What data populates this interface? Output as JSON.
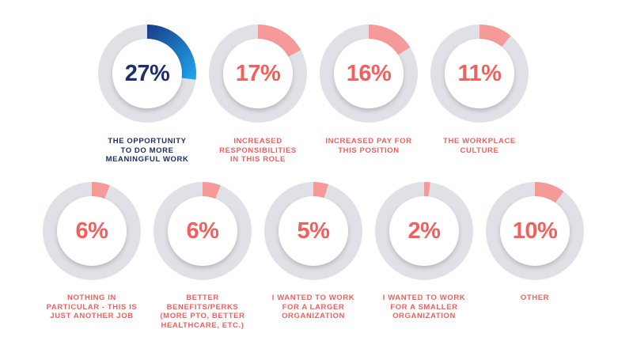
{
  "colors": {
    "track": "#dfe1e6",
    "inner": "#ffffff",
    "accent_coral": "#f25f5c",
    "accent_pink": "#f59a98",
    "accent_navy": "#1f2d6b",
    "accent_blue_start": "#1a3a86",
    "accent_blue_end": "#1fa8f0"
  },
  "chart_data": {
    "type": "donut-grid",
    "title": "",
    "items": [
      {
        "value": 27,
        "display": "27%",
        "label": "The opportunity to do more meaningful work",
        "label_lines": [
          "THE OPPORTUNITY",
          "TO DO MORE",
          "MEANINGFUL WORK"
        ],
        "highlight": true
      },
      {
        "value": 17,
        "display": "17%",
        "label": "Increased responsibilities in this role",
        "label_lines": [
          "INCREASED",
          "RESPONSIBILITIES",
          "IN THIS ROLE"
        ],
        "highlight": false
      },
      {
        "value": 16,
        "display": "16%",
        "label": "Increased pay for this position",
        "label_lines": [
          "INCREASED PAY FOR",
          "THIS POSITION"
        ],
        "highlight": false
      },
      {
        "value": 11,
        "display": "11%",
        "label": "The workplace culture",
        "label_lines": [
          "THE WORKPLACE",
          "CULTURE"
        ],
        "highlight": false
      },
      {
        "value": 6,
        "display": "6%",
        "label": "Nothing in particular - this is just another job",
        "label_lines": [
          "NOTHING IN",
          "PARTICULAR - THIS IS",
          "JUST ANOTHER JOB"
        ],
        "highlight": false
      },
      {
        "value": 6,
        "display": "6%",
        "label": "Better benefits/perks (more PTO, better healthcare, etc.)",
        "label_lines": [
          "BETTER",
          "BENEFITS/PERKS",
          "(MORE PTO, BETTER",
          "HEALTHCARE, ETC.)"
        ],
        "highlight": false
      },
      {
        "value": 5,
        "display": "5%",
        "label": "I wanted to work for a larger organization",
        "label_lines": [
          "I WANTED TO WORK",
          "FOR A LARGER",
          "ORGANIZATION"
        ],
        "highlight": false
      },
      {
        "value": 2,
        "display": "2%",
        "label": "I wanted to work for a smaller organization",
        "label_lines": [
          "I WANTED TO WORK",
          "FOR A SMALLER",
          "ORGANIZATION"
        ],
        "highlight": false
      },
      {
        "value": 10,
        "display": "10%",
        "label": "Other",
        "label_lines": [
          "OTHER"
        ],
        "highlight": false
      }
    ]
  }
}
